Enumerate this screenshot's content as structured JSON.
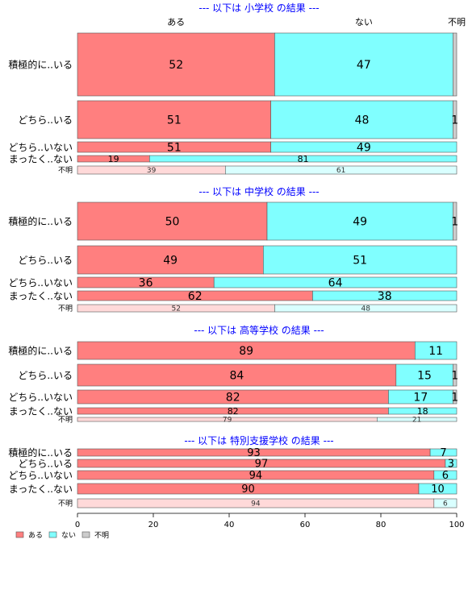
{
  "chart_data": {
    "type": "bar",
    "orientation": "horizontal",
    "stacked": true,
    "xlim": [
      0,
      100
    ],
    "xticks": [
      0,
      20,
      40,
      60,
      80,
      100
    ],
    "grid": false,
    "legend_position": "bottom-left",
    "top_labels": [
      "ある",
      "ない",
      "不明"
    ],
    "legend": [
      {
        "label": "ある",
        "color": "#FF7F7F"
      },
      {
        "label": "ない",
        "color": "#80FFFF"
      },
      {
        "label": "不明",
        "color": "#CCCCCC"
      }
    ],
    "colors": {
      "main": [
        "#FF7F7F",
        "#80FFFF",
        "#CCCCCC"
      ],
      "unknown_row": [
        "#FFD9D9",
        "#D9FFFF",
        "#F0F0F0"
      ],
      "title": "#0000FF"
    },
    "panels": [
      {
        "title": "--- 以下は 小学校 の結果 ---",
        "rows": [
          {
            "label": "積極的に..いる",
            "values": [
              52,
              47,
              1
            ],
            "labels": [
              "52",
              "47",
              ""
            ]
          },
          {
            "label": "どちら..いる",
            "values": [
              51,
              48,
              1
            ],
            "labels": [
              "51",
              "48",
              "1"
            ]
          },
          {
            "label": "どちら..いない",
            "values": [
              51,
              49,
              0
            ],
            "labels": [
              "51",
              "49",
              ""
            ]
          },
          {
            "label": "まったく..ない",
            "values": [
              19,
              81,
              0
            ],
            "labels": [
              "19",
              "81",
              ""
            ]
          },
          {
            "label": "不明",
            "values": [
              39,
              61,
              0
            ],
            "labels": [
              "39",
              "61",
              ""
            ],
            "unknown": true
          }
        ]
      },
      {
        "title": "--- 以下は 中学校 の結果 ---",
        "rows": [
          {
            "label": "積極的に..いる",
            "values": [
              50,
              49,
              1
            ],
            "labels": [
              "50",
              "49",
              "1"
            ]
          },
          {
            "label": "どちら..いる",
            "values": [
              49,
              51,
              0
            ],
            "labels": [
              "49",
              "51",
              ""
            ]
          },
          {
            "label": "どちら..いない",
            "values": [
              36,
              64,
              0
            ],
            "labels": [
              "36",
              "64",
              ""
            ]
          },
          {
            "label": "まったく..ない",
            "values": [
              62,
              38,
              0
            ],
            "labels": [
              "62",
              "38",
              ""
            ]
          },
          {
            "label": "不明",
            "values": [
              52,
              48,
              0
            ],
            "labels": [
              "52",
              "48",
              ""
            ],
            "unknown": true
          }
        ]
      },
      {
        "title": "--- 以下は 高等学校 の結果 ---",
        "rows": [
          {
            "label": "積極的に..いる",
            "values": [
              89,
              11,
              0
            ],
            "labels": [
              "89",
              "11",
              ""
            ]
          },
          {
            "label": "どちら..いる",
            "values": [
              84,
              15,
              1
            ],
            "labels": [
              "84",
              "15",
              "1"
            ]
          },
          {
            "label": "どちら..いない",
            "values": [
              82,
              17,
              1
            ],
            "labels": [
              "82",
              "17",
              "1"
            ]
          },
          {
            "label": "まったく..ない",
            "values": [
              82,
              18,
              0
            ],
            "labels": [
              "82",
              "18",
              ""
            ]
          },
          {
            "label": "不明",
            "values": [
              79,
              21,
              0
            ],
            "labels": [
              "79",
              "21",
              ""
            ],
            "unknown": true
          }
        ]
      },
      {
        "title": "--- 以下は 特別支援学校 の結果 ---",
        "rows": [
          {
            "label": "積極的に..いる",
            "values": [
              93,
              7,
              0
            ],
            "labels": [
              "93",
              "7",
              ""
            ]
          },
          {
            "label": "どちら..いる",
            "values": [
              97,
              3,
              0
            ],
            "labels": [
              "97",
              "3",
              ""
            ]
          },
          {
            "label": "どちら..いない",
            "values": [
              94,
              6,
              0
            ],
            "labels": [
              "94",
              "6",
              ""
            ]
          },
          {
            "label": "まったく..ない",
            "values": [
              90,
              10,
              0
            ],
            "labels": [
              "90",
              "10",
              ""
            ]
          },
          {
            "label": "不明",
            "values": [
              94,
              6,
              0
            ],
            "labels": [
              "94",
              "6",
              ""
            ],
            "unknown": true
          }
        ]
      }
    ]
  }
}
